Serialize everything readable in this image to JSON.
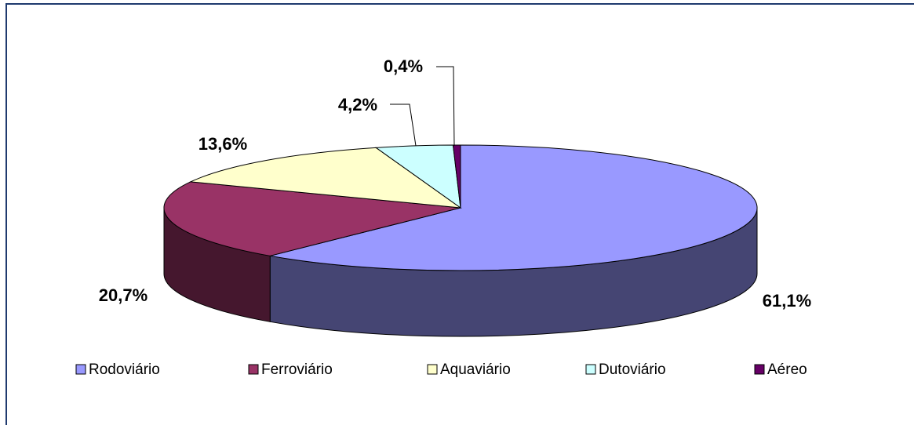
{
  "chart_data": {
    "type": "pie",
    "categories": [
      "Rodoviário",
      "Ferroviário",
      "Aquaviário",
      "Dutoviário",
      "Aéreo"
    ],
    "values": [
      61.1,
      20.7,
      13.6,
      4.2,
      0.4
    ],
    "value_labels": [
      "61,1%",
      "20,7%",
      "13,6%",
      "4,2%",
      "0,4%"
    ],
    "colors": [
      "#9999ff",
      "#993366",
      "#ffffcc",
      "#ccffff",
      "#660066"
    ]
  }
}
